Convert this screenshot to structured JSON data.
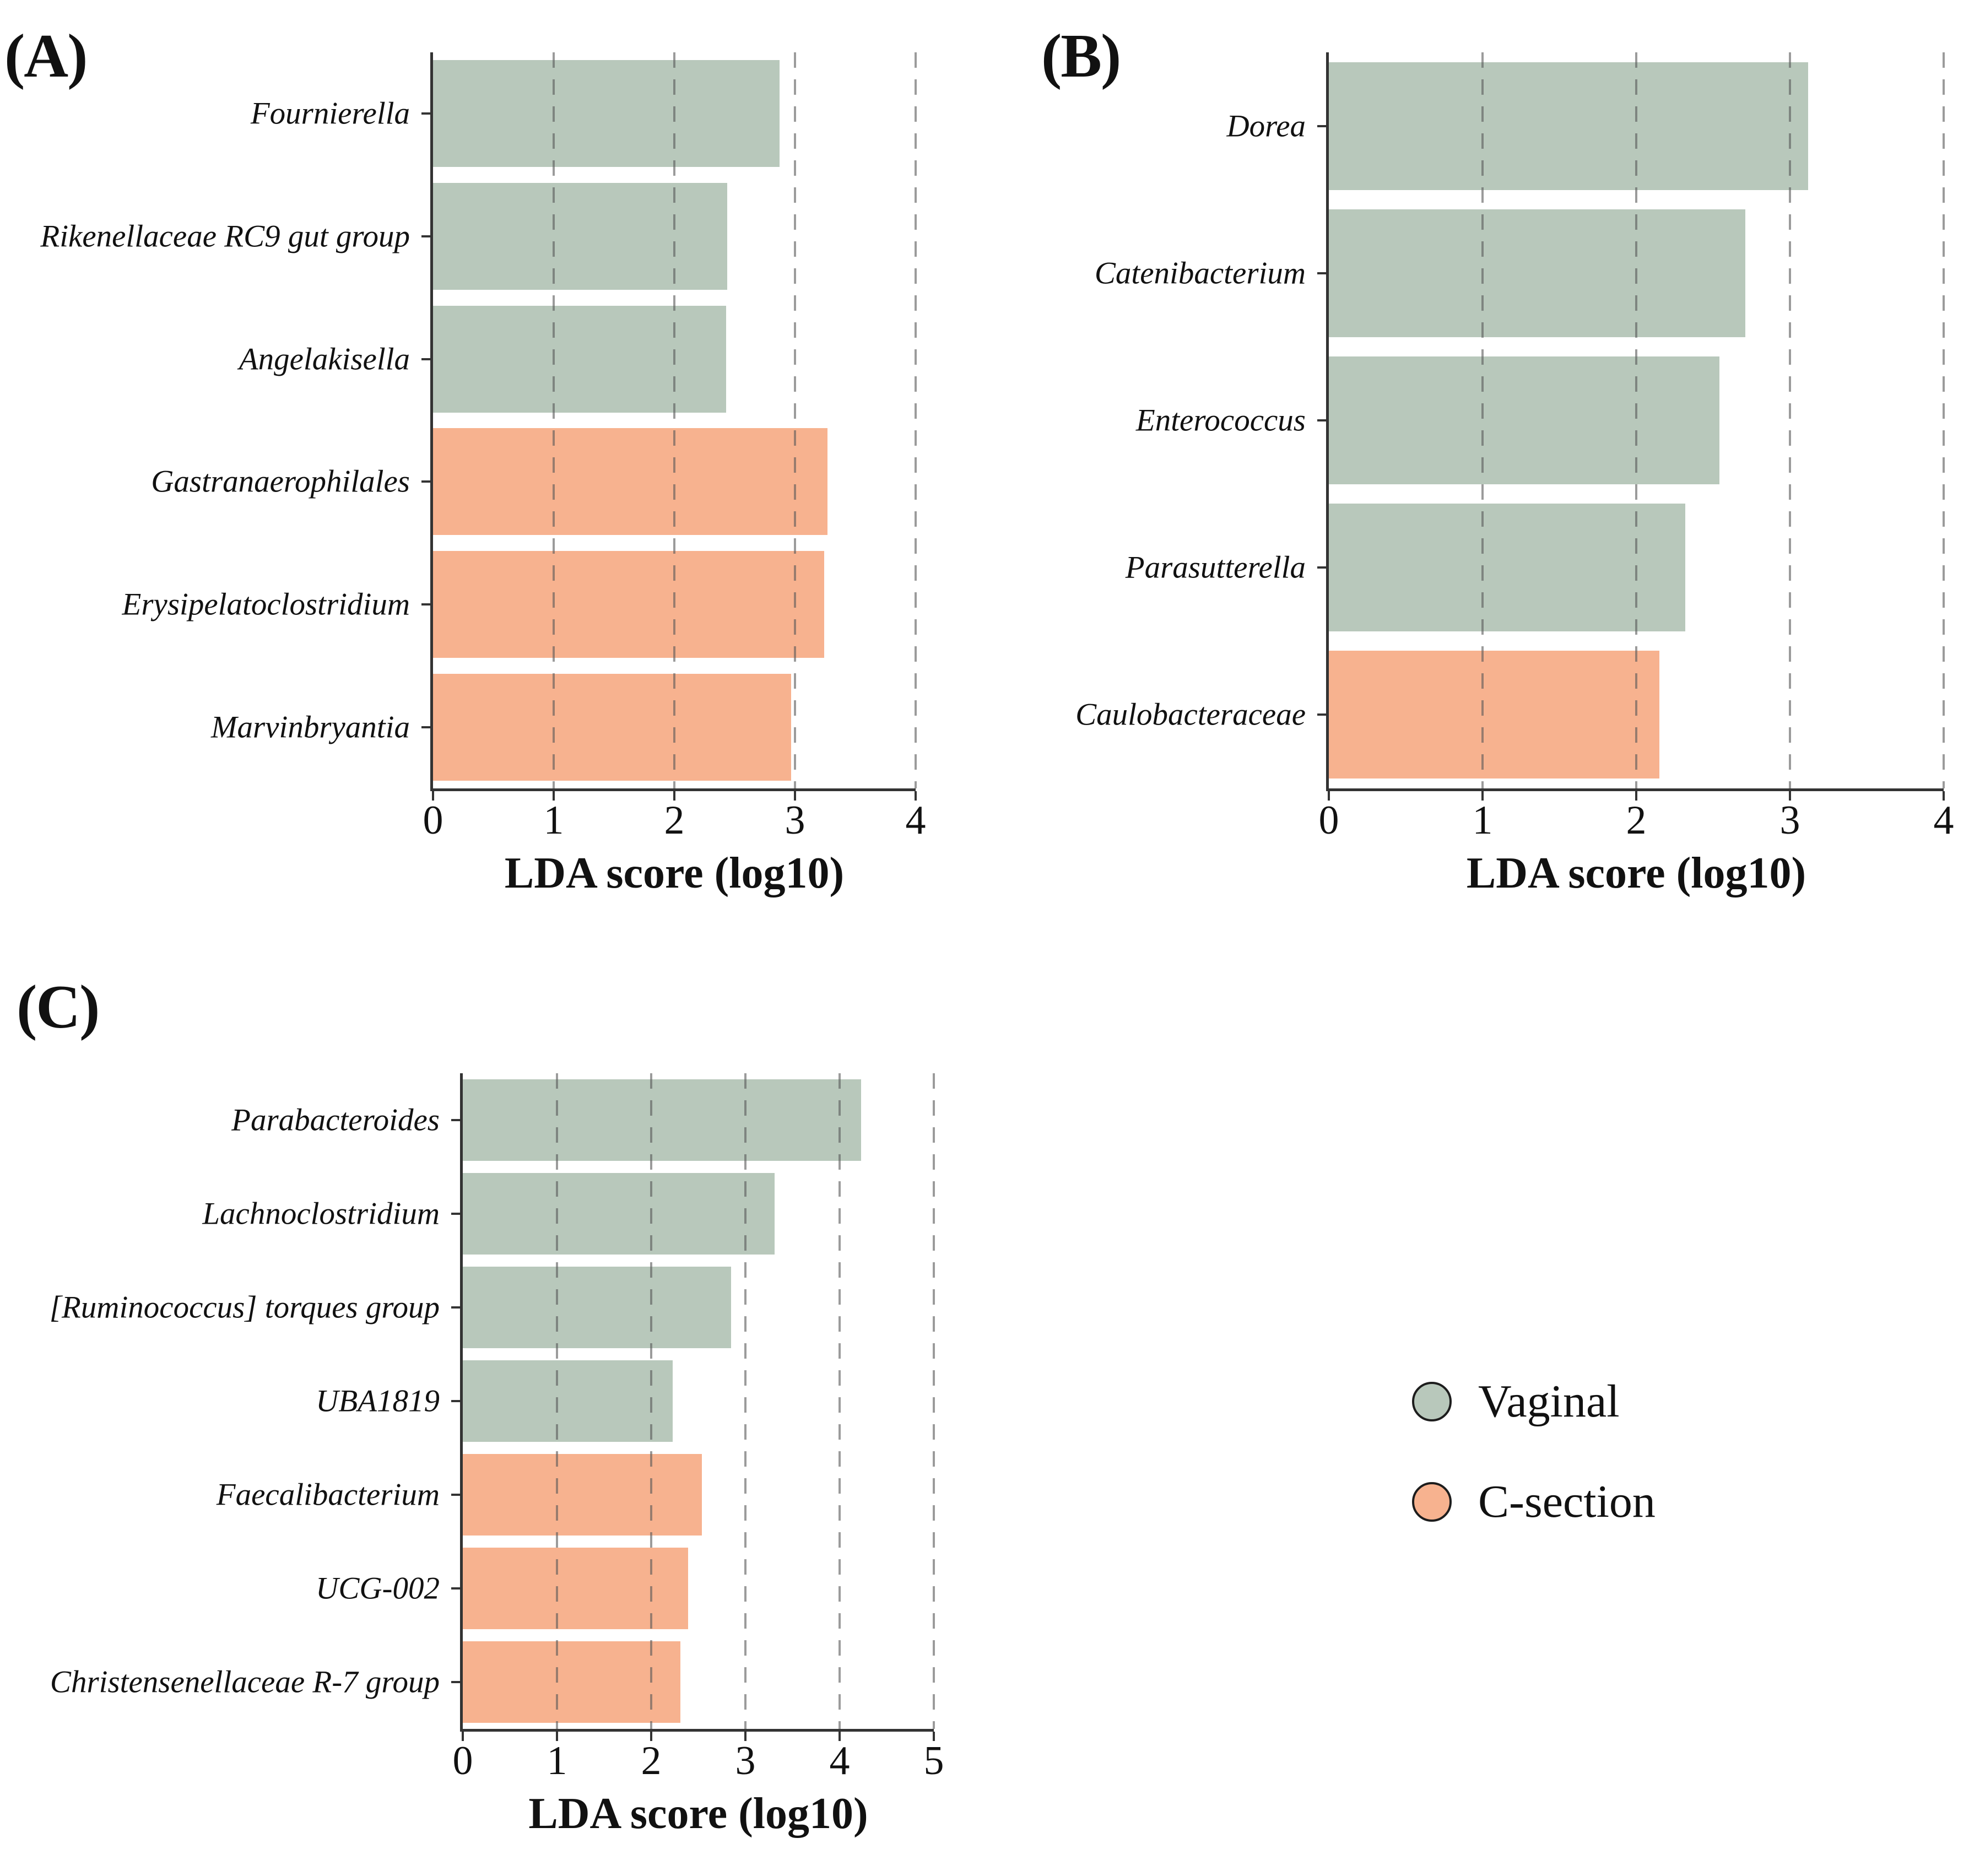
{
  "colors": {
    "vaginal": "#b8c8bb",
    "csection": "#f7b28f",
    "gridline": "#8e8e8e",
    "axis": "#333333"
  },
  "legend": {
    "items": [
      {
        "key": "vaginal",
        "label": "Vaginal"
      },
      {
        "key": "csection",
        "label": "C-section"
      }
    ]
  },
  "chart_data": {
    "type": "bar",
    "orientation": "horizontal",
    "grid": "dashed vertical lines at integer ticks",
    "legend_position": "bottom-right",
    "panels": [
      {
        "letter": "(A)",
        "xlabel": "LDA score (log10)",
        "xlim": [
          0,
          4
        ],
        "xticks": [
          0,
          1,
          2,
          3,
          4
        ],
        "bars": [
          {
            "taxon": "Fournierella",
            "group": "vaginal",
            "lda": 2.87
          },
          {
            "taxon": "Rikenellaceae RC9 gut group",
            "group": "vaginal",
            "lda": 2.44
          },
          {
            "taxon": "Angelakisella",
            "group": "vaginal",
            "lda": 2.43
          },
          {
            "taxon": "Gastranaerophilales",
            "group": "csection",
            "lda": 3.27
          },
          {
            "taxon": "Erysipelatoclostridium",
            "group": "csection",
            "lda": 3.24
          },
          {
            "taxon": "Marvinbryantia",
            "group": "csection",
            "lda": 2.97
          }
        ]
      },
      {
        "letter": "(B)",
        "xlabel": "LDA score (log10)",
        "xlim": [
          0,
          4
        ],
        "xticks": [
          0,
          1,
          2,
          3,
          4
        ],
        "bars": [
          {
            "taxon": "Dorea",
            "group": "vaginal",
            "lda": 3.12
          },
          {
            "taxon": "Catenibacterium",
            "group": "vaginal",
            "lda": 2.71
          },
          {
            "taxon": "Enterococcus",
            "group": "vaginal",
            "lda": 2.54
          },
          {
            "taxon": "Parasutterella",
            "group": "vaginal",
            "lda": 2.32
          },
          {
            "taxon": "Caulobacteraceae",
            "group": "csection",
            "lda": 2.15
          }
        ]
      },
      {
        "letter": "(C)",
        "xlabel": "LDA score (log10)",
        "xlim": [
          0,
          5
        ],
        "xticks": [
          0,
          1,
          2,
          3,
          4,
          5
        ],
        "bars": [
          {
            "taxon": "Parabacteroides",
            "group": "vaginal",
            "lda": 4.23
          },
          {
            "taxon": "Lachnoclostridium",
            "group": "vaginal",
            "lda": 3.31
          },
          {
            "taxon": "[Ruminococcus] torques group",
            "group": "vaginal",
            "lda": 2.85
          },
          {
            "taxon": "UBA1819",
            "group": "vaginal",
            "lda": 2.23
          },
          {
            "taxon": "Faecalibacterium",
            "group": "csection",
            "lda": 2.54
          },
          {
            "taxon": "UCG-002",
            "group": "csection",
            "lda": 2.39
          },
          {
            "taxon": "Christensenellaceae R-7 group",
            "group": "csection",
            "lda": 2.31
          }
        ]
      }
    ]
  }
}
